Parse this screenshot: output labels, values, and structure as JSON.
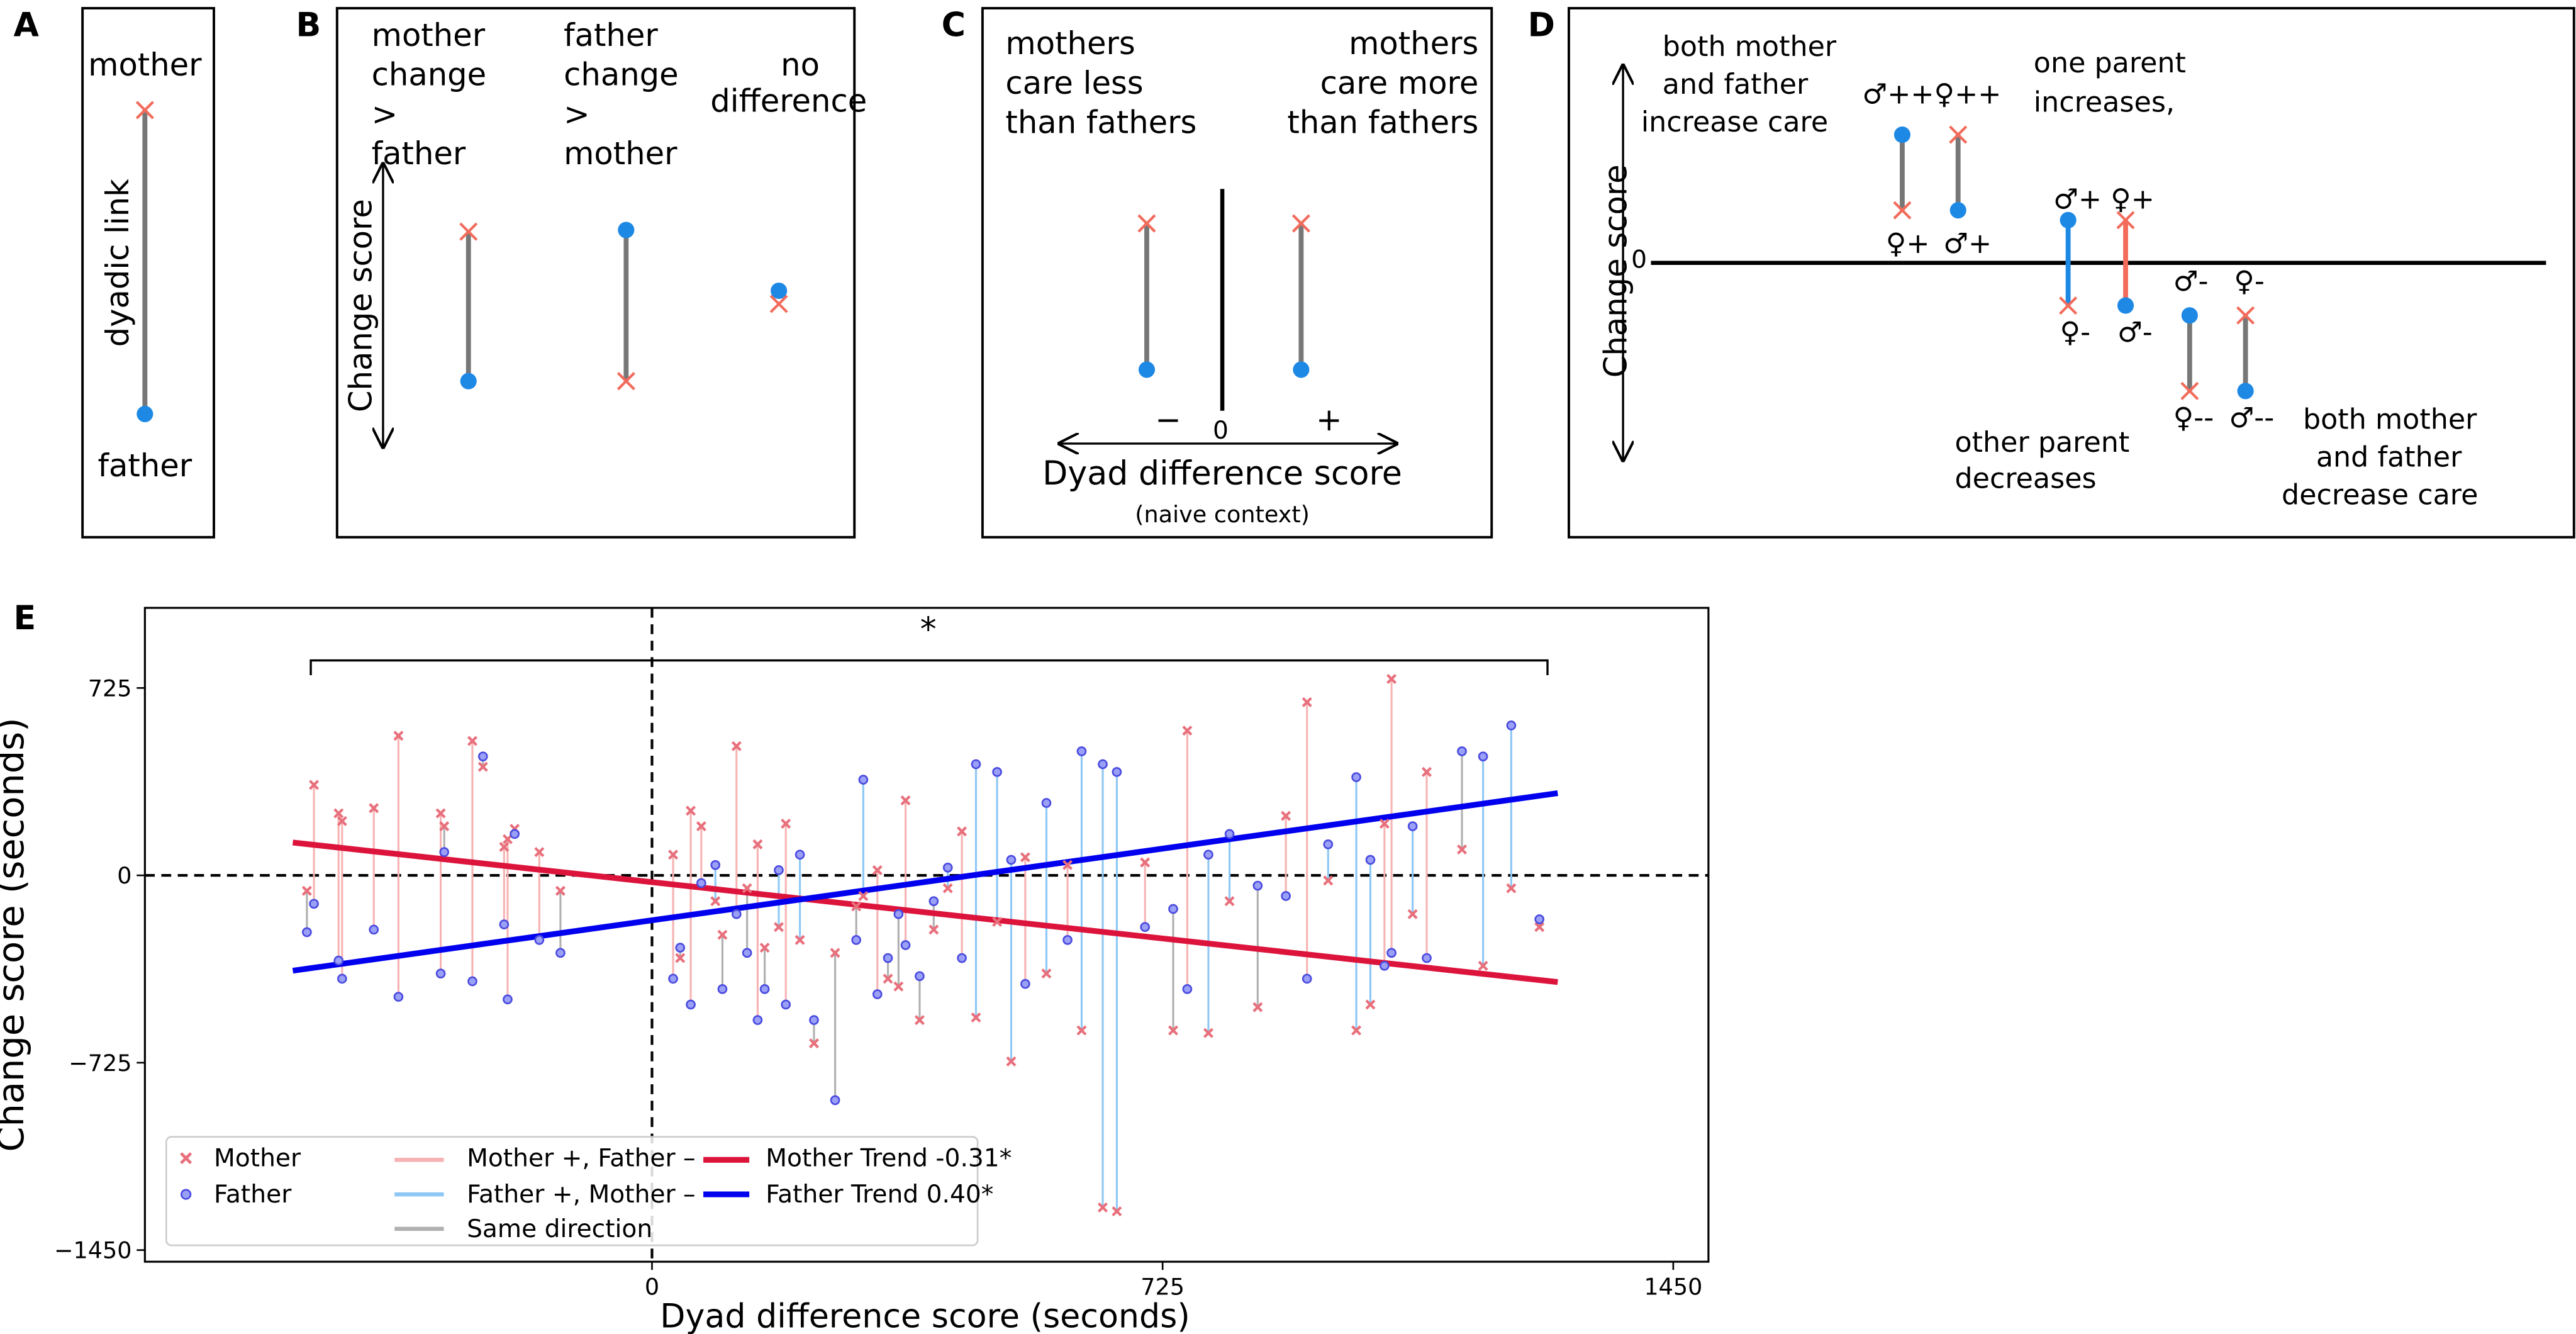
{
  "panels": {
    "a": {
      "label": "A",
      "top": "mother",
      "side": "dyadic link",
      "bottom": "father"
    },
    "b": {
      "label": "B",
      "col1": [
        "mother",
        "change",
        ">",
        "father"
      ],
      "col2": [
        "father",
        "change",
        ">",
        "mother"
      ],
      "col3": [
        "no",
        "difference"
      ],
      "axis": "Change score"
    },
    "c": {
      "label": "C",
      "left": [
        "mothers",
        "care less",
        "than fathers"
      ],
      "right": [
        "mothers",
        "care more",
        "than fathers"
      ],
      "minus": "−",
      "zero": "0",
      "plus": "+",
      "xlabel": "Dyad difference score",
      "sub": "(naive context)"
    },
    "d": {
      "label": "D",
      "axis": "Change score",
      "zero": "0",
      "both_inc": [
        "both mother",
        "and father",
        "increase care"
      ],
      "one_inc": [
        "one parent",
        "increases,"
      ],
      "other_dec": [
        "other parent",
        "decreases"
      ],
      "both_dec": [
        "both mother",
        "and father",
        "decrease care"
      ],
      "sym_inc_top": "♂++♀++",
      "sym_inc_b1": "♀+",
      "sym_inc_b2": "♂+",
      "sym_one_top": "♂+ ♀+",
      "sym_one_b1": "♀-",
      "sym_one_b2": "♂-",
      "sym_dec_top1": "♂-",
      "sym_dec_top2": "♀-",
      "sym_dec_b1": "♀--",
      "sym_dec_b2": "♂--"
    }
  },
  "colors": {
    "mother": "#e8707c",
    "father": "#4a4ae0",
    "pink": "#f7b3b3",
    "lightblue": "#8ec8f5",
    "grey": "#b0b0b0",
    "red": "#dc143c",
    "blue": "#0000ee",
    "diag_red": "#f26b5b",
    "diag_blue": "#1e88e5"
  },
  "chart_data": {
    "type": "scatter",
    "panel_label": "E",
    "xlabel": "Dyad difference score (seconds)",
    "ylabel": "Change score (seconds)",
    "xlim": [
      -720,
      1500
    ],
    "ylim": [
      -1495,
      1035
    ],
    "xticks": [
      0,
      725,
      1450
    ],
    "yticks": [
      725,
      0,
      -725,
      -1450
    ],
    "xtick_labels": [
      "0",
      "725",
      "1450"
    ],
    "ytick_labels": [
      "725",
      "0",
      "−725",
      "−1450"
    ],
    "significance": "*",
    "legend": {
      "placement": "lower-left",
      "entries": [
        "Mother",
        "Father",
        "Mother +, Father –",
        "Father +, Mother –",
        "Same direction",
        "Mother Trend -0.31*",
        "Father Trend 0.40*"
      ]
    },
    "trends": [
      {
        "name": "Mother Trend -0.31*",
        "x": [
          -510,
          1286
        ],
        "y": [
          127,
          -413
        ]
      },
      {
        "name": "Father Trend 0.40*",
        "x": [
          -510,
          1286
        ],
        "y": [
          -369,
          318
        ]
      }
    ],
    "dyads_columns": [
      "x",
      "mother",
      "father"
    ],
    "dyads": [
      [
        -490,
        -60,
        -220
      ],
      [
        -480,
        350,
        -110
      ],
      [
        -445,
        240,
        -330
      ],
      [
        -440,
        210,
        -400
      ],
      [
        -395,
        260,
        -210
      ],
      [
        -360,
        540,
        -470
      ],
      [
        -300,
        240,
        -380
      ],
      [
        -295,
        190,
        90
      ],
      [
        -255,
        520,
        -410
      ],
      [
        -240,
        420,
        460
      ],
      [
        -210,
        110,
        -190
      ],
      [
        -205,
        140,
        -480
      ],
      [
        -195,
        180,
        160
      ],
      [
        -160,
        90,
        -250
      ],
      [
        -130,
        -60,
        -300
      ],
      [
        30,
        80,
        -400
      ],
      [
        40,
        -320,
        -280
      ],
      [
        55,
        250,
        -500
      ],
      [
        70,
        190,
        -30
      ],
      [
        90,
        -100,
        40
      ],
      [
        100,
        -230,
        -440
      ],
      [
        120,
        500,
        -150
      ],
      [
        135,
        -50,
        -300
      ],
      [
        150,
        120,
        -560
      ],
      [
        160,
        -280,
        -440
      ],
      [
        180,
        -200,
        20
      ],
      [
        190,
        200,
        -500
      ],
      [
        210,
        -250,
        80
      ],
      [
        230,
        -650,
        -560
      ],
      [
        260,
        -300,
        -870
      ],
      [
        290,
        -120,
        -250
      ],
      [
        300,
        -80,
        370
      ],
      [
        320,
        20,
        -460
      ],
      [
        335,
        -400,
        -320
      ],
      [
        350,
        -430,
        -150
      ],
      [
        360,
        290,
        -270
      ],
      [
        380,
        -560,
        -390
      ],
      [
        400,
        -210,
        -100
      ],
      [
        420,
        -50,
        30
      ],
      [
        440,
        170,
        -320
      ],
      [
        460,
        -550,
        430
      ],
      [
        490,
        -180,
        400
      ],
      [
        510,
        -720,
        60
      ],
      [
        530,
        70,
        -420
      ],
      [
        560,
        -380,
        280
      ],
      [
        590,
        40,
        -250
      ],
      [
        610,
        -600,
        480
      ],
      [
        640,
        -1285,
        430
      ],
      [
        660,
        -1300,
        400
      ],
      [
        700,
        50,
        -200
      ],
      [
        740,
        -600,
        -130
      ],
      [
        760,
        560,
        -440
      ],
      [
        790,
        -610,
        80
      ],
      [
        820,
        -100,
        160
      ],
      [
        860,
        -510,
        -40
      ],
      [
        900,
        230,
        -80
      ],
      [
        930,
        670,
        -400
      ],
      [
        960,
        -20,
        120
      ],
      [
        1000,
        -600,
        380
      ],
      [
        1020,
        -500,
        60
      ],
      [
        1040,
        200,
        -350
      ],
      [
        1050,
        760,
        -300
      ],
      [
        1080,
        -150,
        190
      ],
      [
        1100,
        400,
        -320
      ],
      [
        1150,
        100,
        480
      ],
      [
        1180,
        -350,
        460
      ],
      [
        1220,
        -50,
        580
      ],
      [
        1260,
        -200,
        -170
      ]
    ]
  }
}
